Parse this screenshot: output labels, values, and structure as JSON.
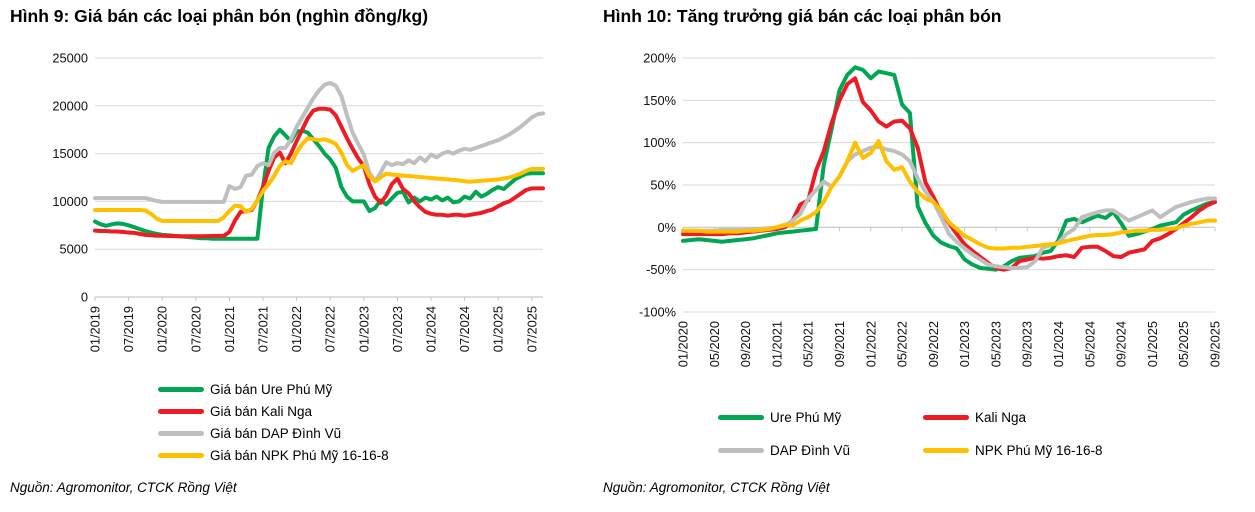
{
  "colors": {
    "green": "#00A651",
    "red": "#ED1C24",
    "gray": "#BFBFBF",
    "yellow": "#FFC000",
    "grid": "#D9D9D9",
    "axis": "#C6C6C6",
    "text": "#111111"
  },
  "chart_data": [
    {
      "type": "line",
      "title": "Hình 9: Giá bán các loại phân bón (nghìn đồng/kg)",
      "source": "Nguồn: Agromonitor, CTCK Rồng Việt",
      "x_start": "01/2019",
      "x_end": "09/2025",
      "x_freq": "monthly",
      "n_points": 81,
      "x_tick_every": 6,
      "x_tick_labels": [
        "01/2019",
        "07/2019",
        "01/2020",
        "07/2020",
        "01/2021",
        "07/2021",
        "01/2022",
        "07/2022",
        "01/2023",
        "07/2023",
        "01/2024",
        "07/2024",
        "01/2025",
        "07/2025"
      ],
      "ylim": [
        0,
        25000
      ],
      "y_tick_values": [
        0,
        5000,
        10000,
        15000,
        20000,
        25000
      ],
      "y_tick_labels": [
        "0",
        "5000",
        "10000",
        "15000",
        "20000",
        "25000"
      ],
      "axis_at": 0,
      "axis_color": "#C6C6C6",
      "grid": true,
      "legend_position": "bottom-left-vertical",
      "series": [
        {
          "key": "ure",
          "name": "Giá bán Ure Phú Mỹ",
          "color": "#00A651",
          "values": [
            7900,
            7600,
            7450,
            7600,
            7700,
            7650,
            7500,
            7300,
            7100,
            6900,
            6750,
            6600,
            6500,
            6450,
            6400,
            6350,
            6300,
            6250,
            6200,
            6150,
            6150,
            6100,
            6100,
            6100,
            6100,
            6100,
            6100,
            6100,
            6100,
            6100,
            11500,
            15600,
            16800,
            17500,
            16900,
            16300,
            17300,
            17400,
            17200,
            16500,
            15800,
            15000,
            14400,
            13500,
            11500,
            10500,
            10000,
            10000,
            10000,
            9000,
            9300,
            10100,
            9700,
            10300,
            10900,
            11000,
            9900,
            10400,
            10000,
            10400,
            10200,
            10500,
            10100,
            10400,
            9900,
            10000,
            10500,
            10300,
            11000,
            10500,
            10800,
            11200,
            11500,
            11300,
            11800,
            12300,
            12600,
            12900,
            12950,
            12950,
            12950
          ]
        },
        {
          "key": "kali",
          "name": "Giá bán Kali Nga",
          "color": "#ED1C24",
          "values": [
            6950,
            6900,
            6900,
            6850,
            6850,
            6800,
            6750,
            6700,
            6600,
            6500,
            6450,
            6400,
            6400,
            6380,
            6370,
            6360,
            6350,
            6350,
            6350,
            6360,
            6370,
            6380,
            6390,
            6400,
            6800,
            8000,
            8900,
            9000,
            9100,
            10100,
            11500,
            13200,
            14600,
            15100,
            14000,
            15000,
            16300,
            17500,
            18700,
            19500,
            19700,
            19700,
            19600,
            19000,
            17800,
            16600,
            15500,
            14500,
            13700,
            11800,
            10500,
            9850,
            10600,
            11800,
            12400,
            11300,
            10850,
            10000,
            9400,
            8900,
            8700,
            8600,
            8600,
            8500,
            8600,
            8600,
            8500,
            8600,
            8700,
            8800,
            9000,
            9150,
            9500,
            9800,
            10000,
            10400,
            10800,
            11200,
            11360,
            11360,
            11360
          ]
        },
        {
          "key": "dap",
          "name": "Giá bán DAP Đình Vũ",
          "color": "#BFBFBF",
          "values": [
            10350,
            10350,
            10350,
            10350,
            10350,
            10350,
            10350,
            10350,
            10350,
            10350,
            10200,
            10050,
            9950,
            9950,
            9950,
            9950,
            9950,
            9950,
            9950,
            9950,
            9950,
            9950,
            9950,
            9950,
            11600,
            11300,
            11500,
            12700,
            12800,
            13700,
            14000,
            13800,
            15100,
            15600,
            15600,
            16500,
            17800,
            18800,
            19800,
            20800,
            21600,
            22200,
            22400,
            22100,
            21000,
            19000,
            17200,
            16000,
            14900,
            13000,
            12100,
            13000,
            14100,
            13800,
            14000,
            13900,
            14300,
            14000,
            14600,
            14200,
            14900,
            14600,
            15000,
            15200,
            15000,
            15300,
            15500,
            15400,
            15600,
            15800,
            16000,
            16200,
            16400,
            16700,
            17000,
            17400,
            17800,
            18300,
            18800,
            19100,
            19200
          ]
        },
        {
          "key": "npk",
          "name": "Giá bán NPK Phú Mỹ 16-16-8",
          "color": "#FFC000",
          "values": [
            9100,
            9100,
            9100,
            9100,
            9100,
            9100,
            9100,
            9100,
            9100,
            9050,
            8700,
            8200,
            7950,
            7950,
            7950,
            7950,
            7950,
            7950,
            7950,
            7950,
            7950,
            7950,
            7950,
            8350,
            9000,
            9560,
            9500,
            8900,
            9200,
            10100,
            11100,
            11800,
            12670,
            13700,
            14200,
            14000,
            15100,
            16000,
            16600,
            16500,
            16400,
            16500,
            16300,
            16000,
            15100,
            13800,
            13200,
            13500,
            13800,
            12600,
            12100,
            12500,
            12900,
            12800,
            12750,
            12700,
            12650,
            12600,
            12550,
            12500,
            12450,
            12400,
            12350,
            12300,
            12250,
            12200,
            12100,
            12050,
            12100,
            12150,
            12200,
            12250,
            12300,
            12400,
            12500,
            12700,
            12900,
            13200,
            13400,
            13400,
            13400
          ]
        }
      ]
    },
    {
      "type": "line",
      "title": "Hình 10: Tăng trưởng giá bán các loại phân bón",
      "source": "Nguồn: Agromonitor, CTCK Rồng Việt",
      "x_start": "01/2020",
      "x_end": "09/2025",
      "x_freq": "monthly",
      "n_points": 69,
      "x_tick_every": 4,
      "x_tick_labels": [
        "01/2020",
        "05/2020",
        "09/2020",
        "01/2021",
        "05/2021",
        "09/2021",
        "01/2022",
        "05/2022",
        "09/2022",
        "01/2023",
        "05/2023",
        "09/2023",
        "01/2024",
        "05/2024",
        "09/2024",
        "01/2025",
        "05/2025",
        "09/2025"
      ],
      "ylim": [
        -100,
        200
      ],
      "y_tick_values": [
        -100,
        -50,
        0,
        50,
        100,
        150,
        200
      ],
      "y_tick_labels": [
        "-100%",
        "-50%",
        "0%",
        "50%",
        "100%",
        "150%",
        "200%"
      ],
      "axis_at": 0,
      "axis_color": "#C6C6C6",
      "grid": true,
      "legend_position": "bottom-2x2",
      "series": [
        {
          "key": "ure",
          "name": "Ure Phú Mỹ",
          "color": "#00A651",
          "values": [
            -16,
            -15,
            -14,
            -15,
            -16,
            -17,
            -16,
            -15,
            -14,
            -13,
            -11,
            -9,
            -7,
            -6,
            -5,
            -4,
            -3,
            -2,
            74,
            116,
            162,
            180,
            189,
            186,
            176,
            184,
            182,
            180,
            145,
            135,
            25,
            5,
            -10,
            -18,
            -22,
            -25,
            -38,
            -44,
            -48,
            -49,
            -50,
            -46,
            -40,
            -36,
            -35,
            -34,
            -30,
            -28,
            -15,
            8,
            10,
            6,
            10,
            14,
            11,
            18,
            5,
            -10,
            -8,
            -5,
            -2,
            2,
            4,
            6,
            15,
            20,
            24,
            28,
            30
          ]
        },
        {
          "key": "kali",
          "name": "Kali Nga",
          "color": "#ED1C24",
          "values": [
            -8,
            -8,
            -8,
            -8,
            -8,
            -8,
            -7,
            -7,
            -6,
            -5,
            -4,
            -3,
            -2,
            0,
            8,
            27,
            32,
            67,
            90,
            123,
            150,
            169,
            176,
            148,
            138,
            125,
            119,
            125,
            126,
            117,
            94,
            53,
            36,
            17,
            5,
            -8,
            -20,
            -28,
            -35,
            -42,
            -48,
            -50,
            -48,
            -40,
            -38,
            -36,
            -37,
            -36,
            -34,
            -33,
            -35,
            -24,
            -23,
            -23,
            -28,
            -34,
            -35,
            -30,
            -28,
            -26,
            -16,
            -13,
            -8,
            -2,
            5,
            12,
            20,
            26,
            30
          ]
        },
        {
          "key": "dap",
          "name": "DAP Đình Vũ",
          "color": "#BFBFBF",
          "values": [
            -4,
            -4,
            -4,
            -4,
            -4,
            -3,
            -3,
            -3,
            -3,
            -2,
            -2,
            -1,
            0,
            2,
            8,
            16,
            34,
            44,
            54,
            48,
            60,
            78,
            86,
            90,
            94,
            95,
            92,
            90,
            86,
            78,
            58,
            42,
            30,
            12,
            -8,
            -17,
            -25,
            -32,
            -38,
            -44,
            -46,
            -47,
            -48,
            -48,
            -47,
            -40,
            -24,
            -21,
            -18,
            -8,
            -2,
            12,
            15,
            18,
            20,
            20,
            14,
            8,
            12,
            16,
            20,
            12,
            18,
            24,
            27,
            30,
            32,
            34,
            34
          ]
        },
        {
          "key": "npk",
          "name": "NPK Phú Mỹ 16-16-8",
          "color": "#FFC000",
          "values": [
            -4,
            -4,
            -4,
            -5,
            -5,
            -5,
            -5,
            -5,
            -4,
            -4,
            -3,
            -2,
            0,
            3,
            2,
            8,
            12,
            18,
            30,
            48,
            60,
            78,
            100,
            82,
            88,
            102,
            78,
            68,
            71,
            54,
            42,
            34,
            30,
            20,
            6,
            -2,
            -10,
            -15,
            -20,
            -24,
            -25,
            -25,
            -24,
            -24,
            -23,
            -22,
            -21,
            -20,
            -19,
            -16,
            -14,
            -12,
            -10,
            -9,
            -9,
            -8,
            -6,
            -5,
            -4,
            -4,
            -3,
            -3,
            -2,
            -1,
            2,
            4,
            6,
            8,
            8
          ]
        }
      ]
    }
  ]
}
